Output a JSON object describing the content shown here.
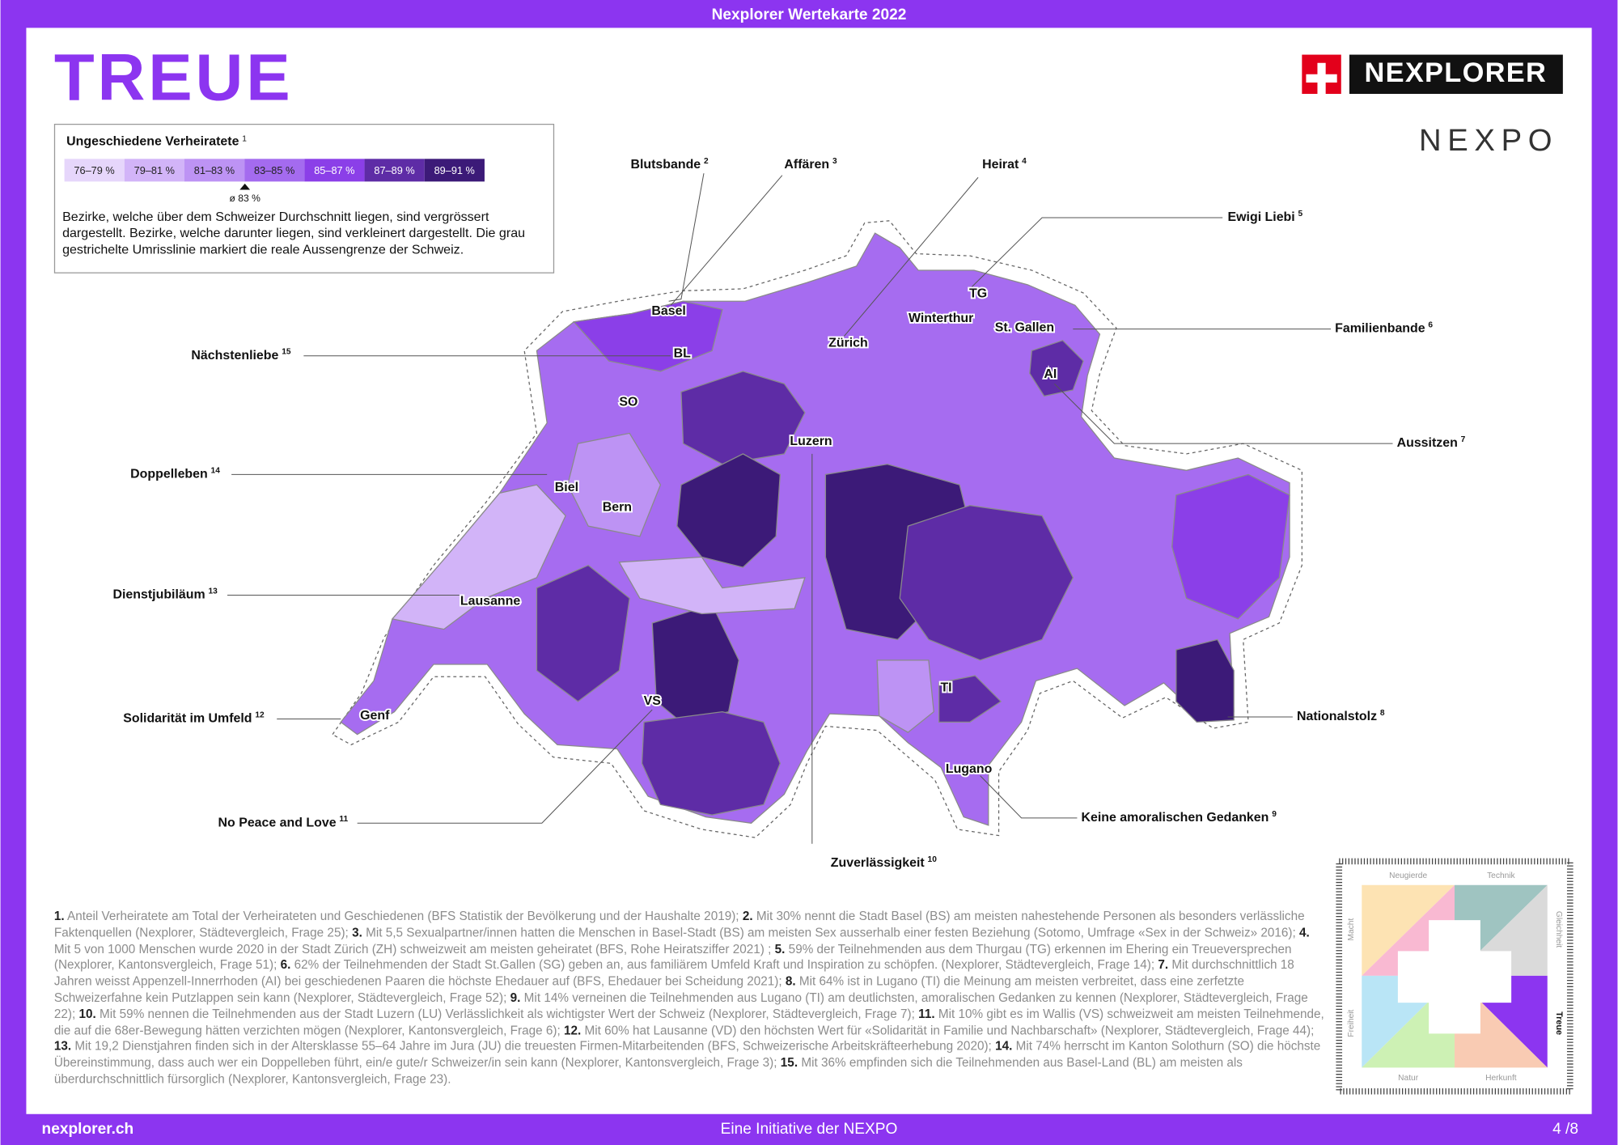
{
  "header": {
    "top_bar": "Nexplorer Wertekarte 2022",
    "title": "TREUE",
    "logo": "NEXPLORER",
    "logo2": "NEXPO"
  },
  "legend": {
    "title": "Ungeschiedene Verheiratete",
    "note": "1",
    "classes": [
      "76–79 %",
      "79–81 %",
      "81–83 %",
      "83–85 %",
      "85–87 %",
      "87–89 %",
      "89–91 %"
    ],
    "colors": [
      "#e6d6fb",
      "#d2b4f8",
      "#bd93f4",
      "#a46bef",
      "#8b3fe8",
      "#5e2ca6",
      "#3c1a78"
    ],
    "average": "ø 83 %",
    "description": "Bezirke, welche über dem Schweizer Durchschnitt liegen, sind vergrössert dargestellt. Bezirke, welche darunter liegen, sind verkleinert dargestellt. Die grau gestrichelte Umrisslinie markiert die reale Aussengrenze der Schweiz."
  },
  "map": {
    "cities": [
      "Basel",
      "BL",
      "SO",
      "Biel",
      "Bern",
      "Lausanne",
      "Genf",
      "VS",
      "Zürich",
      "Winterthur",
      "TG",
      "St. Gallen",
      "AI",
      "Luzern",
      "TI",
      "Lugano"
    ],
    "callouts": [
      {
        "label": "Blutsbande",
        "note": "2"
      },
      {
        "label": "Affären",
        "note": "3"
      },
      {
        "label": "Heirat",
        "note": "4"
      },
      {
        "label": "Ewigi Liebi",
        "note": "5"
      },
      {
        "label": "Familienbande",
        "note": "6"
      },
      {
        "label": "Aussitzen",
        "note": "7"
      },
      {
        "label": "Nationalstolz",
        "note": "8"
      },
      {
        "label": "Keine amoralischen Gedanken",
        "note": "9"
      },
      {
        "label": "Zuverlässigkeit",
        "note": "10"
      },
      {
        "label": "No Peace and Love",
        "note": "11"
      },
      {
        "label": "Solidarität im Umfeld",
        "note": "12"
      },
      {
        "label": "Dienstjubiläum",
        "note": "13"
      },
      {
        "label": "Doppelleben",
        "note": "14"
      },
      {
        "label": "Nächstenliebe",
        "note": "15"
      }
    ]
  },
  "footnotes": [
    {
      "num": "1.",
      "text": "Anteil Verheiratete am Total der Verheirateten und Geschiedenen (BFS Statistik der Bevölkerung und der Haushalte 2019);"
    },
    {
      "num": "2.",
      "text": "Mit 30% nennt die Stadt Basel (BS) am meisten nahestehende Personen als besonders verlässliche Faktenquellen (Nexplorer, Städtevergleich, Frage 25);"
    },
    {
      "num": "3.",
      "text": "Mit 5,5 Sexualpartner/innen hatten die Menschen in Basel-Stadt (BS) am meisten Sex ausserhalb einer festen Beziehung (Sotomo, Umfrage «Sex in der Schweiz» 2016);"
    },
    {
      "num": "4.",
      "text": "Mit 5 von 1000 Menschen wurde 2020 in der Stadt Zürich (ZH) schweizweit am meisten geheiratet (BFS, Rohe Heiratsziffer 2021) ;"
    },
    {
      "num": "5.",
      "text": "59% der Teilnehmenden aus dem Thurgau (TG) erkennen im Ehering ein Treueversprechen (Nexplorer, Kantonsvergleich, Frage 51);"
    },
    {
      "num": "6.",
      "text": "62% der Teilnehmenden der Stadt St.Gallen (SG) geben an, aus familiärem Umfeld Kraft und Inspiration zu schöpfen. (Nexplorer, Städtevergleich, Frage 14);"
    },
    {
      "num": "7.",
      "text": "Mit durchschnittlich 18 Jahren weisst Appenzell-Innerrhoden (AI) bei geschiedenen Paaren die höchste Ehedauer auf (BFS, Ehedauer bei Scheidung 2021);"
    },
    {
      "num": "8.",
      "text": "Mit 64% ist in Lugano (TI) die Meinung am meisten verbreitet, dass eine zerfetzte Schweizerfahne kein Putzlappen sein kann (Nexplorer, Städtevergleich, Frage 52);"
    },
    {
      "num": "9.",
      "text": "Mit 14% verneinen die Teilnehmenden aus Lugano (TI) am deutlichsten, amoralischen Gedanken zu kennen (Nexplorer, Städtevergleich, Frage 22);"
    },
    {
      "num": "10.",
      "text": "Mit 59% nennen die Teilnehmenden aus der Stadt Luzern (LU) Verlässlichkeit als wichtigster Wert der Schweiz (Nexplorer, Städtevergleich, Frage 7);"
    },
    {
      "num": "11.",
      "text": "Mit 10% gibt es im Wallis (VS) schweizweit am meisten Teilnehmende, die auf die 68er-Bewegung hätten verzichten mögen (Nexplorer, Kantonsvergleich, Frage 6);"
    },
    {
      "num": "12.",
      "text": "Mit 60% hat Lausanne (VD) den höchsten Wert für «Solidarität in Familie und Nachbarschaft» (Nexplorer, Städtevergleich, Frage 44);"
    },
    {
      "num": "13.",
      "text": "Mit 19,2 Dienstjahren finden sich in der Altersklasse 55–64 Jahre im Jura (JU) die treuesten Firmen-Mitarbeitenden (BFS, Schweizerische Arbeitskräfteerhebung 2020);"
    },
    {
      "num": "14.",
      "text": "Mit 74% herrscht im Kanton Solothurn (SO) die höchste Übereinstimmung, dass auch wer ein Doppelleben führt, ein/e gute/r Schweizer/in sein kann (Nexplorer, Kantonsvergleich, Frage 3);"
    },
    {
      "num": "15.",
      "text": "Mit 36% empfinden sich die Teilnehmenden aus Basel-Land (BL) am meisten als überdurchschnittlich fürsorglich (Nexplorer, Kantonsvergleich, Frage 23)."
    }
  ],
  "values_diagram": [
    "Neugierde",
    "Technik",
    "Gleichheit",
    "Treue",
    "Herkunft",
    "Natur",
    "Freiheit",
    "Macht"
  ],
  "footer": {
    "left": "nexplorer.ch",
    "center": "Eine Initiative der NEXPO",
    "right": "4 /8"
  }
}
